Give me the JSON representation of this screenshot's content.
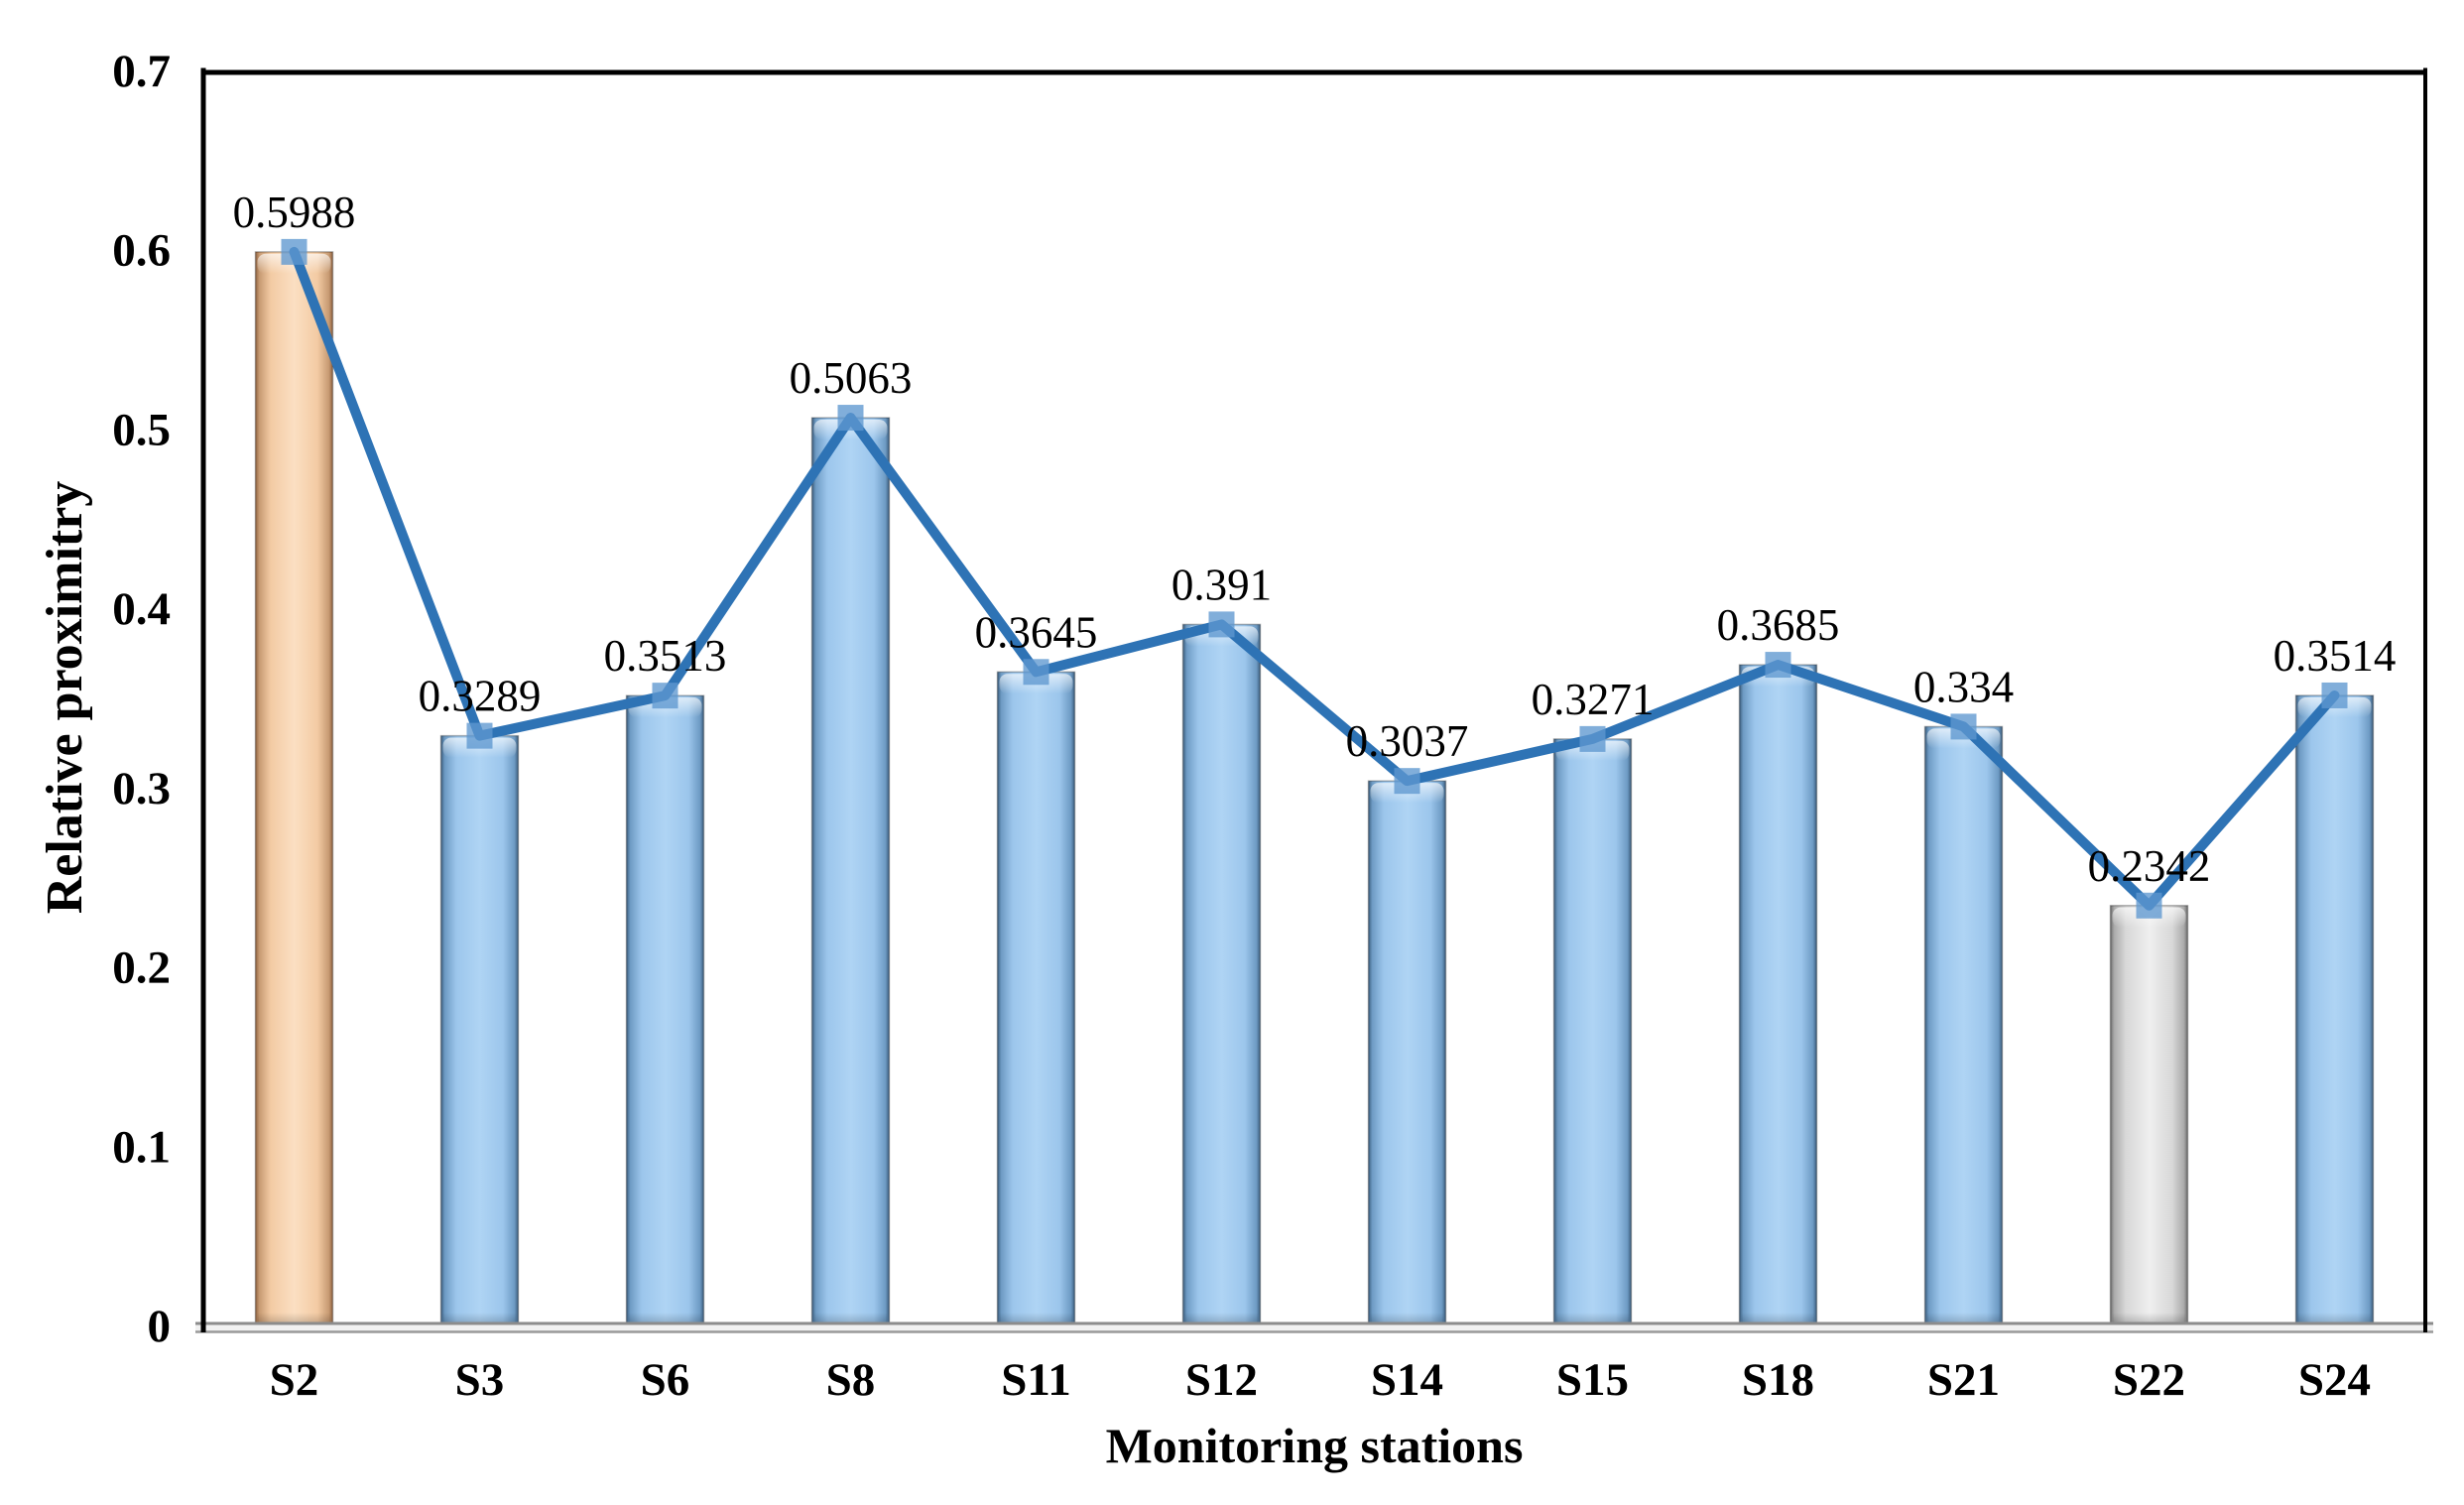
{
  "chart_data": {
    "type": "bar+line",
    "title": "",
    "xlabel": "Monitoring stations",
    "ylabel": "Relative proximitry",
    "ylim": [
      0,
      0.7
    ],
    "grid": false,
    "legend": "none",
    "y_ticks": [
      {
        "value": 0,
        "label": "0"
      },
      {
        "value": 0.1,
        "label": "0.1"
      },
      {
        "value": 0.2,
        "label": "0.2"
      },
      {
        "value": 0.3,
        "label": "0.3"
      },
      {
        "value": 0.4,
        "label": "0.4"
      },
      {
        "value": 0.5,
        "label": "0.5"
      },
      {
        "value": 0.6,
        "label": "0.6"
      },
      {
        "value": 0.7,
        "label": "0.7"
      }
    ],
    "categories": [
      "S2",
      "S3",
      "S6",
      "S8",
      "S11",
      "S12",
      "S14",
      "S15",
      "S18",
      "S21",
      "S22",
      "S24"
    ],
    "points": [
      {
        "category": "S2",
        "value": 0.5988,
        "label": "0.5988",
        "bar_color_key": "peach"
      },
      {
        "category": "S3",
        "value": 0.3289,
        "label": "0.3289",
        "bar_color_key": "blue"
      },
      {
        "category": "S6",
        "value": 0.3513,
        "label": "0.3513",
        "bar_color_key": "blue"
      },
      {
        "category": "S8",
        "value": 0.5063,
        "label": "0.5063",
        "bar_color_key": "blue"
      },
      {
        "category": "S11",
        "value": 0.3645,
        "label": "0.3645",
        "bar_color_key": "blue"
      },
      {
        "category": "S12",
        "value": 0.391,
        "label": "0.391",
        "bar_color_key": "blue"
      },
      {
        "category": "S14",
        "value": 0.3037,
        "label": "0.3037",
        "bar_color_key": "blue"
      },
      {
        "category": "S15",
        "value": 0.3271,
        "label": "0.3271",
        "bar_color_key": "blue"
      },
      {
        "category": "S18",
        "value": 0.3685,
        "label": "0.3685",
        "bar_color_key": "blue"
      },
      {
        "category": "S21",
        "value": 0.334,
        "label": "0.334",
        "bar_color_key": "blue"
      },
      {
        "category": "S22",
        "value": 0.2342,
        "label": "0.2342",
        "bar_color_key": "gray"
      },
      {
        "category": "S24",
        "value": 0.3514,
        "label": "0.3514",
        "bar_color_key": "blue"
      }
    ],
    "colors": {
      "line": "#2E73B5",
      "marker": "#5E97CF",
      "axis_frame": "#000000",
      "baseline_edge": "#8C8C8C",
      "baseline_fill": "#F1F1F1",
      "label_text": "#000000",
      "bars": {
        "blue": {
          "center": "#AFD4F4",
          "mid": "#9CC6EC",
          "edge": "#6E9BC4",
          "dark": "#3C5E7E"
        },
        "peach": {
          "center": "#FBDFC2",
          "mid": "#F3CBA4",
          "edge": "#C79A72",
          "dark": "#8F6240"
        },
        "gray": {
          "center": "#EFEFEF",
          "mid": "#D8D8D8",
          "edge": "#ABABAB",
          "dark": "#6E6E6E"
        }
      }
    }
  }
}
